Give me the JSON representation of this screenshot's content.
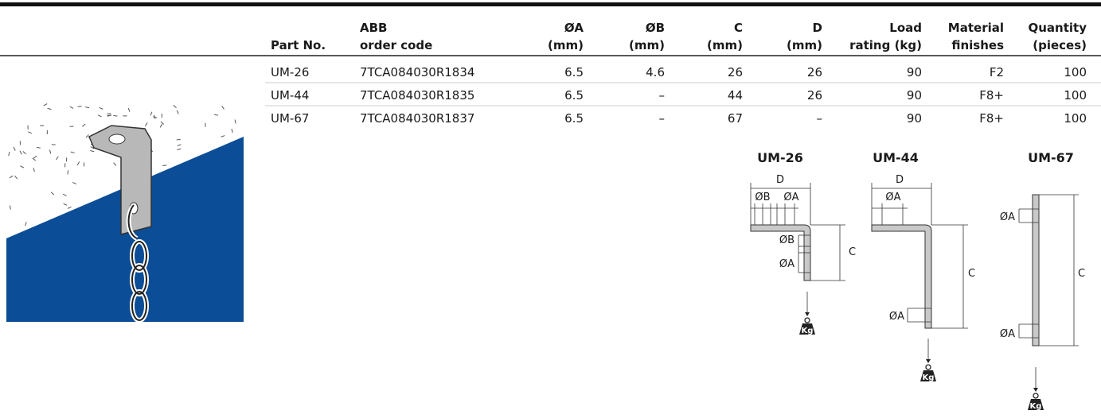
{
  "table": {
    "headers": [
      [
        "Part No."
      ],
      [
        "ABB",
        "order code"
      ],
      [
        "ØA",
        "(mm)"
      ],
      [
        "ØB",
        "(mm)"
      ],
      [
        "C",
        "(mm)"
      ],
      [
        "D",
        "(mm)"
      ],
      [
        "Load",
        "rating (kg)"
      ],
      [
        "Material",
        "finishes"
      ],
      [
        "Quantity",
        "(pieces)"
      ]
    ],
    "rows": [
      [
        "UM-26",
        "7TCA084030R1834",
        "6.5",
        "4.6",
        "26",
        "26",
        "90",
        "F2",
        "100"
      ],
      [
        "UM-44",
        "7TCA084030R1835",
        "6.5",
        "–",
        "44",
        "26",
        "90",
        "F8+",
        "100"
      ],
      [
        "UM-67",
        "7TCA084030R1837",
        "6.5",
        "–",
        "67",
        "–",
        "90",
        "F8+",
        "100"
      ]
    ]
  },
  "diagrams": [
    {
      "title": "UM-26",
      "labels": [
        "D",
        "ØB",
        "ØA",
        "ØB",
        "ØA",
        "C",
        "Kg"
      ]
    },
    {
      "title": "UM-44",
      "labels": [
        "D",
        "ØA",
        "ØA",
        "C",
        "Kg"
      ]
    },
    {
      "title": "UM-67",
      "labels": [
        "ØA",
        "ØA",
        "C",
        "Kg"
      ]
    }
  ]
}
